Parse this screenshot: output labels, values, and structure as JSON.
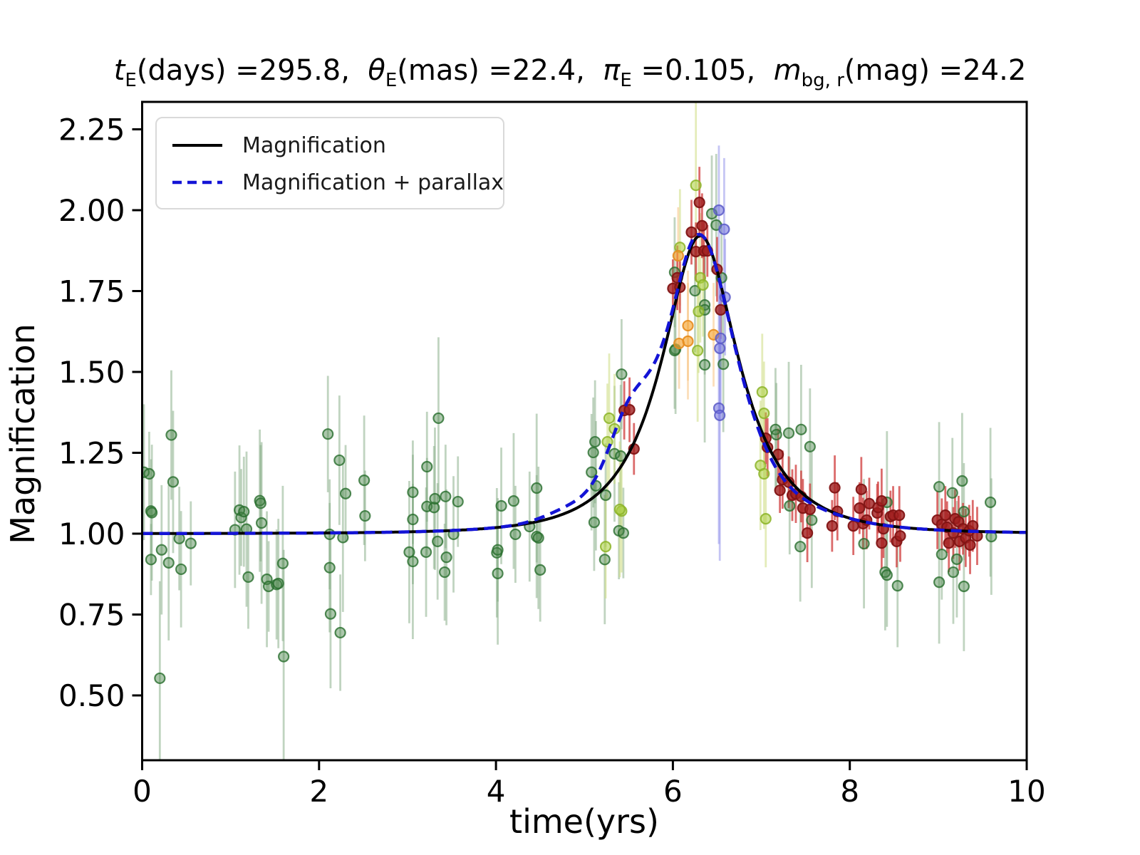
{
  "figure": {
    "bg": "#ffffff"
  },
  "title": {
    "plain": "t_E(days) =295.8,  θ_E(mas) =22.4,  π_E =0.105,  m_bg, r(mag) =24.2",
    "segments": [
      {
        "t": "t",
        "style": "i"
      },
      {
        "t": "E",
        "style": "sub"
      },
      {
        "t": "(days) =295.8,  ",
        "style": ""
      },
      {
        "t": "θ",
        "style": "i"
      },
      {
        "t": "E",
        "style": "sub"
      },
      {
        "t": "(mas) =22.4,  ",
        "style": ""
      },
      {
        "t": "π",
        "style": "i"
      },
      {
        "t": "E",
        "style": "sub"
      },
      {
        "t": " =0.105,  ",
        "style": ""
      },
      {
        "t": "m",
        "style": "i"
      },
      {
        "t": "bg, r",
        "style": "sub"
      },
      {
        "t": "(mag) =24.2",
        "style": ""
      }
    ]
  },
  "legend": {
    "items": [
      {
        "label": "Magnification",
        "style": "solid",
        "color": "#000000"
      },
      {
        "label": "Magnification + parallax",
        "style": "dashed",
        "color": "#1414d6"
      }
    ]
  },
  "axes": {
    "xlabel": "time(yrs)",
    "ylabel": "Magnification",
    "xlim": [
      0,
      10
    ],
    "ylim": [
      0.2996,
      2.3348
    ],
    "xticks": [
      0,
      2,
      4,
      6,
      8,
      10
    ],
    "xticklabels": [
      "0",
      "2",
      "4",
      "6",
      "8",
      "10"
    ],
    "yticks": [
      0.5,
      0.75,
      1.0,
      1.25,
      1.5,
      1.75,
      2.0,
      2.25
    ],
    "yticklabels": [
      "0.50",
      "0.75",
      "1.00",
      "1.25",
      "1.50",
      "1.75",
      "2.00",
      "2.25"
    ],
    "grid": false
  },
  "chart_data": {
    "type": "scatter",
    "title": "t_E(days) =295.8,  θ_E(mas) =22.4,  π_E =0.105,  m_bg, r(mag) =24.2",
    "xlabel": "time(yrs)",
    "ylabel": "Magnification",
    "xlim": [
      0,
      10
    ],
    "ylim": [
      0.2996,
      2.3348
    ],
    "legend_position": "upper left",
    "curves": [
      {
        "name": "Magnification",
        "model": "paczynski",
        "t0": 6.31,
        "tE_yr": 0.81,
        "u0": 0.585,
        "color": "#000000",
        "width": 4,
        "dash": null,
        "bumps": []
      },
      {
        "name": "Magnification + parallax",
        "model": "paczynski",
        "t0": 6.31,
        "tE_yr": 0.81,
        "u0": 0.585,
        "color": "#1414d6",
        "width": 4.5,
        "dash": [
          15,
          9
        ],
        "bumps": [
          [
            0.165,
            5.5,
            0.32
          ],
          [
            -0.022,
            7.15,
            0.45
          ],
          [
            0.02,
            4.85,
            0.4
          ],
          [
            0.012,
            6.18,
            0.12
          ]
        ]
      }
    ],
    "series": [
      {
        "name": "survey-green",
        "marker": "circle",
        "fill": "rgba(70,130,70,0.45)",
        "edge": "rgba(40,110,45,0.8)",
        "bar": "rgba(130,170,130,0.5)",
        "points": [
          [
            0.02,
            1.19,
            0.21
          ],
          [
            0.08,
            1.185,
            0.13
          ],
          [
            0.1,
            1.07,
            0.16
          ],
          [
            0.11,
            1.065,
            0.21
          ],
          [
            0.1,
            0.92,
            0.11
          ],
          [
            0.2,
            0.553,
            0.3
          ],
          [
            0.22,
            0.95,
            0.2
          ],
          [
            0.3,
            0.91,
            0.24
          ],
          [
            0.33,
            1.305,
            0.2
          ],
          [
            0.35,
            1.16,
            0.22
          ],
          [
            0.42,
            0.985,
            0.16
          ],
          [
            0.44,
            0.89,
            0.18
          ],
          [
            0.55,
            0.97,
            0.13
          ],
          [
            1.05,
            1.012,
            0.18
          ],
          [
            1.1,
            1.073,
            0.2
          ],
          [
            1.12,
            1.05,
            0.15
          ],
          [
            1.15,
            1.068,
            0.17
          ],
          [
            1.18,
            1.014,
            0.24
          ],
          [
            1.2,
            0.866,
            0.16
          ],
          [
            1.33,
            1.102,
            0.22
          ],
          [
            1.34,
            1.094,
            0.18
          ],
          [
            1.35,
            1.033,
            0.25
          ],
          [
            1.41,
            0.859,
            0.21
          ],
          [
            1.43,
            0.837,
            0.14
          ],
          [
            1.52,
            0.843,
            0.17
          ],
          [
            1.54,
            0.846,
            0.2
          ],
          [
            1.59,
            0.908,
            0.24
          ],
          [
            1.6,
            0.62,
            0.33
          ],
          [
            2.1,
            1.308,
            0.18
          ],
          [
            2.12,
            0.998,
            0.17
          ],
          [
            2.12,
            0.895,
            0.2
          ],
          [
            2.13,
            0.752,
            0.23
          ],
          [
            2.23,
            1.227,
            0.2
          ],
          [
            2.24,
            0.694,
            0.18
          ],
          [
            2.27,
            0.988,
            0.23
          ],
          [
            2.3,
            1.124,
            0.15
          ],
          [
            2.51,
            1.165,
            0.2
          ],
          [
            2.52,
            1.055,
            0.14
          ],
          [
            3.02,
            0.943,
            0.22
          ],
          [
            3.06,
            1.128,
            0.16
          ],
          [
            3.06,
            1.044,
            0.2
          ],
          [
            3.06,
            0.914,
            0.24
          ],
          [
            3.21,
            0.943,
            0.2
          ],
          [
            3.22,
            1.207,
            0.17
          ],
          [
            3.22,
            1.084,
            0.15
          ],
          [
            3.3,
            1.081,
            0.19
          ],
          [
            3.31,
            1.108,
            0.22
          ],
          [
            3.35,
            1.357,
            0.25
          ],
          [
            3.34,
            0.976,
            0.18
          ],
          [
            3.43,
            1.115,
            0.16
          ],
          [
            3.44,
            0.927,
            0.21
          ],
          [
            3.42,
            0.881,
            0.15
          ],
          [
            3.52,
            0.998,
            0.18
          ],
          [
            3.57,
            1.099,
            0.14
          ],
          [
            4.01,
            0.941,
            0.2
          ],
          [
            4.02,
            0.95,
            0.16
          ],
          [
            4.02,
            0.877,
            0.22
          ],
          [
            4.06,
            1.086,
            0.18
          ],
          [
            4.2,
            1.101,
            0.21
          ],
          [
            4.22,
            0.998,
            0.15
          ],
          [
            4.38,
            1.022,
            0.17
          ],
          [
            4.46,
            1.141,
            0.23
          ],
          [
            4.46,
            0.991,
            0.19
          ],
          [
            4.48,
            0.987,
            0.22
          ],
          [
            4.5,
            0.888,
            0.16
          ],
          [
            5.08,
            1.19,
            0.18
          ],
          [
            5.11,
            1.035,
            0.15
          ],
          [
            5.12,
            1.284,
            0.19
          ],
          [
            5.1,
            1.251,
            0.17
          ],
          [
            5.13,
            1.148,
            0.2
          ],
          [
            5.24,
            1.119,
            0.16
          ],
          [
            5.34,
            1.247,
            0.21
          ],
          [
            5.42,
            1.493,
            0.17
          ],
          [
            5.41,
            1.24,
            0.22
          ],
          [
            5.39,
            1.009,
            0.15
          ],
          [
            5.44,
            1.002,
            0.14
          ],
          [
            5.23,
            0.92,
            0.2
          ],
          [
            6.02,
            1.808,
            0.17
          ],
          [
            6.03,
            1.57,
            0.2
          ],
          [
            6.02,
            1.566,
            0.18
          ],
          [
            6.25,
            1.751,
            0.19
          ],
          [
            6.36,
            1.707,
            0.16
          ],
          [
            6.36,
            1.692,
            0.2
          ],
          [
            6.44,
            1.989,
            0.18
          ],
          [
            6.49,
            1.954,
            0.22
          ],
          [
            6.55,
            1.791,
            0.17
          ],
          [
            6.36,
            1.522,
            0.24
          ],
          [
            6.57,
            1.524,
            0.21
          ],
          [
            7.16,
            1.322,
            0.19
          ],
          [
            7.17,
            1.306,
            0.16
          ],
          [
            7.31,
            1.311,
            0.22
          ],
          [
            7.45,
            1.322,
            0.2
          ],
          [
            7.55,
            1.269,
            0.18
          ],
          [
            7.32,
            1.086,
            0.15
          ],
          [
            7.57,
            1.042,
            0.21
          ],
          [
            7.44,
            0.96,
            0.17
          ],
          [
            8.16,
            0.969,
            0.2
          ],
          [
            8.4,
            0.881,
            0.18
          ],
          [
            8.42,
            1.097,
            0.22
          ],
          [
            8.42,
            0.872,
            0.16
          ],
          [
            8.54,
            0.839,
            0.19
          ],
          [
            9.01,
            1.145,
            0.2
          ],
          [
            9.16,
            1.126,
            0.17
          ],
          [
            9.27,
            1.163,
            0.21
          ],
          [
            9.29,
            1.068,
            0.15
          ],
          [
            9.59,
            1.097,
            0.23
          ],
          [
            9.6,
            0.991,
            0.18
          ],
          [
            9.01,
            0.85,
            0.19
          ],
          [
            9.17,
            0.881,
            0.16
          ],
          [
            9.29,
            0.837,
            0.2
          ],
          [
            9.04,
            0.936,
            0.14
          ],
          [
            9.21,
            0.921,
            0.18
          ]
        ]
      },
      {
        "name": "survey-yellowgreen",
        "marker": "circle",
        "fill": "rgba(170,205,60,0.55)",
        "edge": "rgba(140,180,40,0.85)",
        "bar": "rgba(205,220,130,0.55)",
        "points": [
          [
            5.26,
            1.284,
            0.18
          ],
          [
            5.28,
            1.357,
            0.2
          ],
          [
            5.34,
            1.324,
            0.17
          ],
          [
            5.42,
            1.07,
            0.19
          ],
          [
            5.24,
            0.96,
            0.16
          ],
          [
            5.4,
            1.075,
            0.21
          ],
          [
            6.08,
            1.885,
            0.18
          ],
          [
            6.26,
            2.077,
            0.3
          ],
          [
            6.31,
            1.791,
            0.2
          ],
          [
            6.34,
            1.769,
            0.16
          ],
          [
            6.29,
            1.687,
            0.19
          ],
          [
            6.28,
            1.566,
            0.22
          ],
          [
            7.01,
            1.438,
            0.18
          ],
          [
            7.03,
            1.372,
            0.16
          ],
          [
            6.99,
            1.211,
            0.2
          ],
          [
            7.03,
            1.185,
            0.17
          ],
          [
            7.05,
            1.046,
            0.15
          ]
        ]
      },
      {
        "name": "survey-orange",
        "marker": "circle",
        "fill": "rgba(245,165,50,0.65)",
        "edge": "rgba(230,140,30,0.9)",
        "bar": "rgba(248,200,140,0.6)",
        "points": [
          [
            6.06,
            1.859,
            0.15
          ],
          [
            6.17,
            1.643,
            0.17
          ],
          [
            6.07,
            1.588,
            0.14
          ],
          [
            6.46,
            1.615,
            0.16
          ],
          [
            6.17,
            1.595,
            0.18
          ]
        ]
      },
      {
        "name": "survey-red",
        "marker": "circle",
        "fill": "rgba(160,30,30,0.8)",
        "edge": "rgba(130,20,20,0.95)",
        "bar": "rgba(210,70,70,0.8)",
        "points": [
          [
            5.45,
            1.381,
            0.09
          ],
          [
            5.51,
            1.383,
            0.1
          ],
          [
            5.56,
            1.262,
            0.08
          ],
          [
            6.0,
            1.758,
            0.09
          ],
          [
            6.05,
            1.791,
            0.1
          ],
          [
            6.08,
            1.762,
            0.08
          ],
          [
            6.21,
            1.932,
            0.1
          ],
          [
            6.26,
            1.872,
            0.09
          ],
          [
            6.3,
            2.024,
            0.11
          ],
          [
            6.33,
            1.952,
            0.1
          ],
          [
            6.35,
            1.874,
            0.09
          ],
          [
            6.39,
            1.874,
            0.08
          ],
          [
            6.5,
            1.817,
            0.1
          ],
          [
            6.54,
            1.692,
            0.09
          ],
          [
            7.05,
            1.295,
            0.08
          ],
          [
            7.07,
            1.267,
            0.09
          ],
          [
            7.19,
            1.245,
            0.08
          ],
          [
            7.24,
            1.167,
            0.09
          ],
          [
            7.31,
            1.159,
            0.08
          ],
          [
            7.21,
            1.134,
            0.07
          ],
          [
            7.35,
            1.119,
            0.08
          ],
          [
            7.39,
            1.123,
            0.09
          ],
          [
            7.45,
            1.115,
            0.08
          ],
          [
            7.47,
            1.079,
            0.09
          ],
          [
            7.55,
            1.075,
            0.08
          ],
          [
            7.52,
            1.002,
            0.09
          ],
          [
            7.83,
            1.142,
            0.1
          ],
          [
            7.86,
            1.069,
            0.09
          ],
          [
            7.8,
            1.024,
            0.08
          ],
          [
            8.04,
            1.024,
            0.09
          ],
          [
            8.11,
            1.079,
            0.08
          ],
          [
            8.13,
            1.137,
            0.1
          ],
          [
            8.15,
            1.031,
            0.08
          ],
          [
            8.19,
            1.042,
            0.09
          ],
          [
            8.22,
            1.093,
            0.08
          ],
          [
            8.31,
            1.064,
            0.09
          ],
          [
            8.32,
            1.081,
            0.08
          ],
          [
            8.36,
            1.101,
            0.1
          ],
          [
            8.36,
            0.971,
            0.08
          ],
          [
            8.38,
            1.015,
            0.09
          ],
          [
            8.46,
            1.053,
            0.08
          ],
          [
            8.49,
            1.057,
            0.09
          ],
          [
            8.53,
            0.976,
            0.08
          ],
          [
            8.56,
            1.057,
            0.09
          ],
          [
            8.57,
            0.993,
            0.08
          ],
          [
            8.99,
            1.042,
            0.09
          ],
          [
            9.04,
            1.029,
            0.08
          ],
          [
            9.08,
            1.057,
            0.09
          ],
          [
            9.1,
            1.02,
            0.08
          ],
          [
            9.12,
            0.971,
            0.09
          ],
          [
            9.17,
            1.002,
            0.08
          ],
          [
            9.19,
            1.046,
            0.09
          ],
          [
            9.23,
            1.037,
            0.08
          ],
          [
            9.24,
            0.976,
            0.09
          ],
          [
            9.28,
            1.015,
            0.08
          ],
          [
            9.31,
            0.987,
            0.09
          ],
          [
            9.35,
            1.009,
            0.08
          ],
          [
            9.36,
            0.965,
            0.09
          ],
          [
            9.39,
            1.024,
            0.08
          ],
          [
            9.44,
            0.993,
            0.09
          ]
        ]
      },
      {
        "name": "survey-blue",
        "marker": "circle",
        "fill": "rgba(110,110,220,0.55)",
        "edge": "rgba(90,90,200,0.85)",
        "bar": "rgba(150,150,235,0.55)",
        "points": [
          [
            6.52,
            2.0,
            0.2
          ],
          [
            6.58,
            1.941,
            0.22
          ],
          [
            6.59,
            1.731,
            0.18
          ],
          [
            6.54,
            1.604,
            0.2
          ],
          [
            6.53,
            1.573,
            0.19
          ],
          [
            6.52,
            1.388,
            0.42
          ],
          [
            6.53,
            1.366,
            0.45
          ]
        ]
      }
    ]
  }
}
